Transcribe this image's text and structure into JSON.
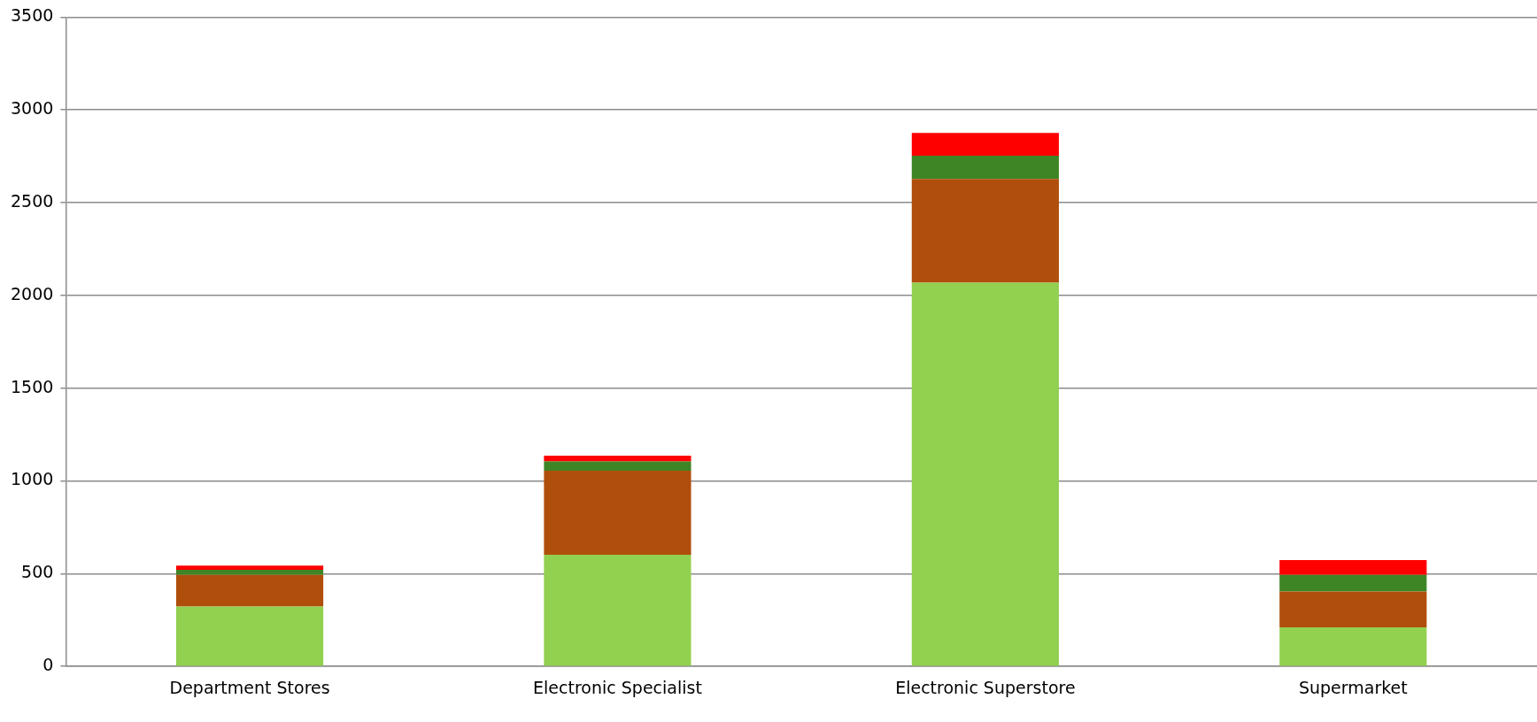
{
  "chart_data": {
    "type": "bar",
    "stacked": true,
    "categories": [
      "Department Stores",
      "Electronic Specialist",
      "Electronic Superstore",
      "Supermarket"
    ],
    "series": [
      {
        "color": "#92d050",
        "values": [
          323,
          602,
          2069,
          211
        ]
      },
      {
        "color": "#b04e0c",
        "values": [
          170,
          453,
          559,
          193
        ]
      },
      {
        "color": "#3e8526",
        "values": [
          28,
          50,
          125,
          90
        ]
      },
      {
        "color": "#ff0000",
        "values": [
          22,
          31,
          123,
          79
        ]
      }
    ],
    "ylim": [
      0,
      3500
    ],
    "yticks": [
      0,
      500,
      1000,
      1500,
      2000,
      2500,
      3000,
      3500
    ],
    "grid": "y",
    "legend": false
  }
}
